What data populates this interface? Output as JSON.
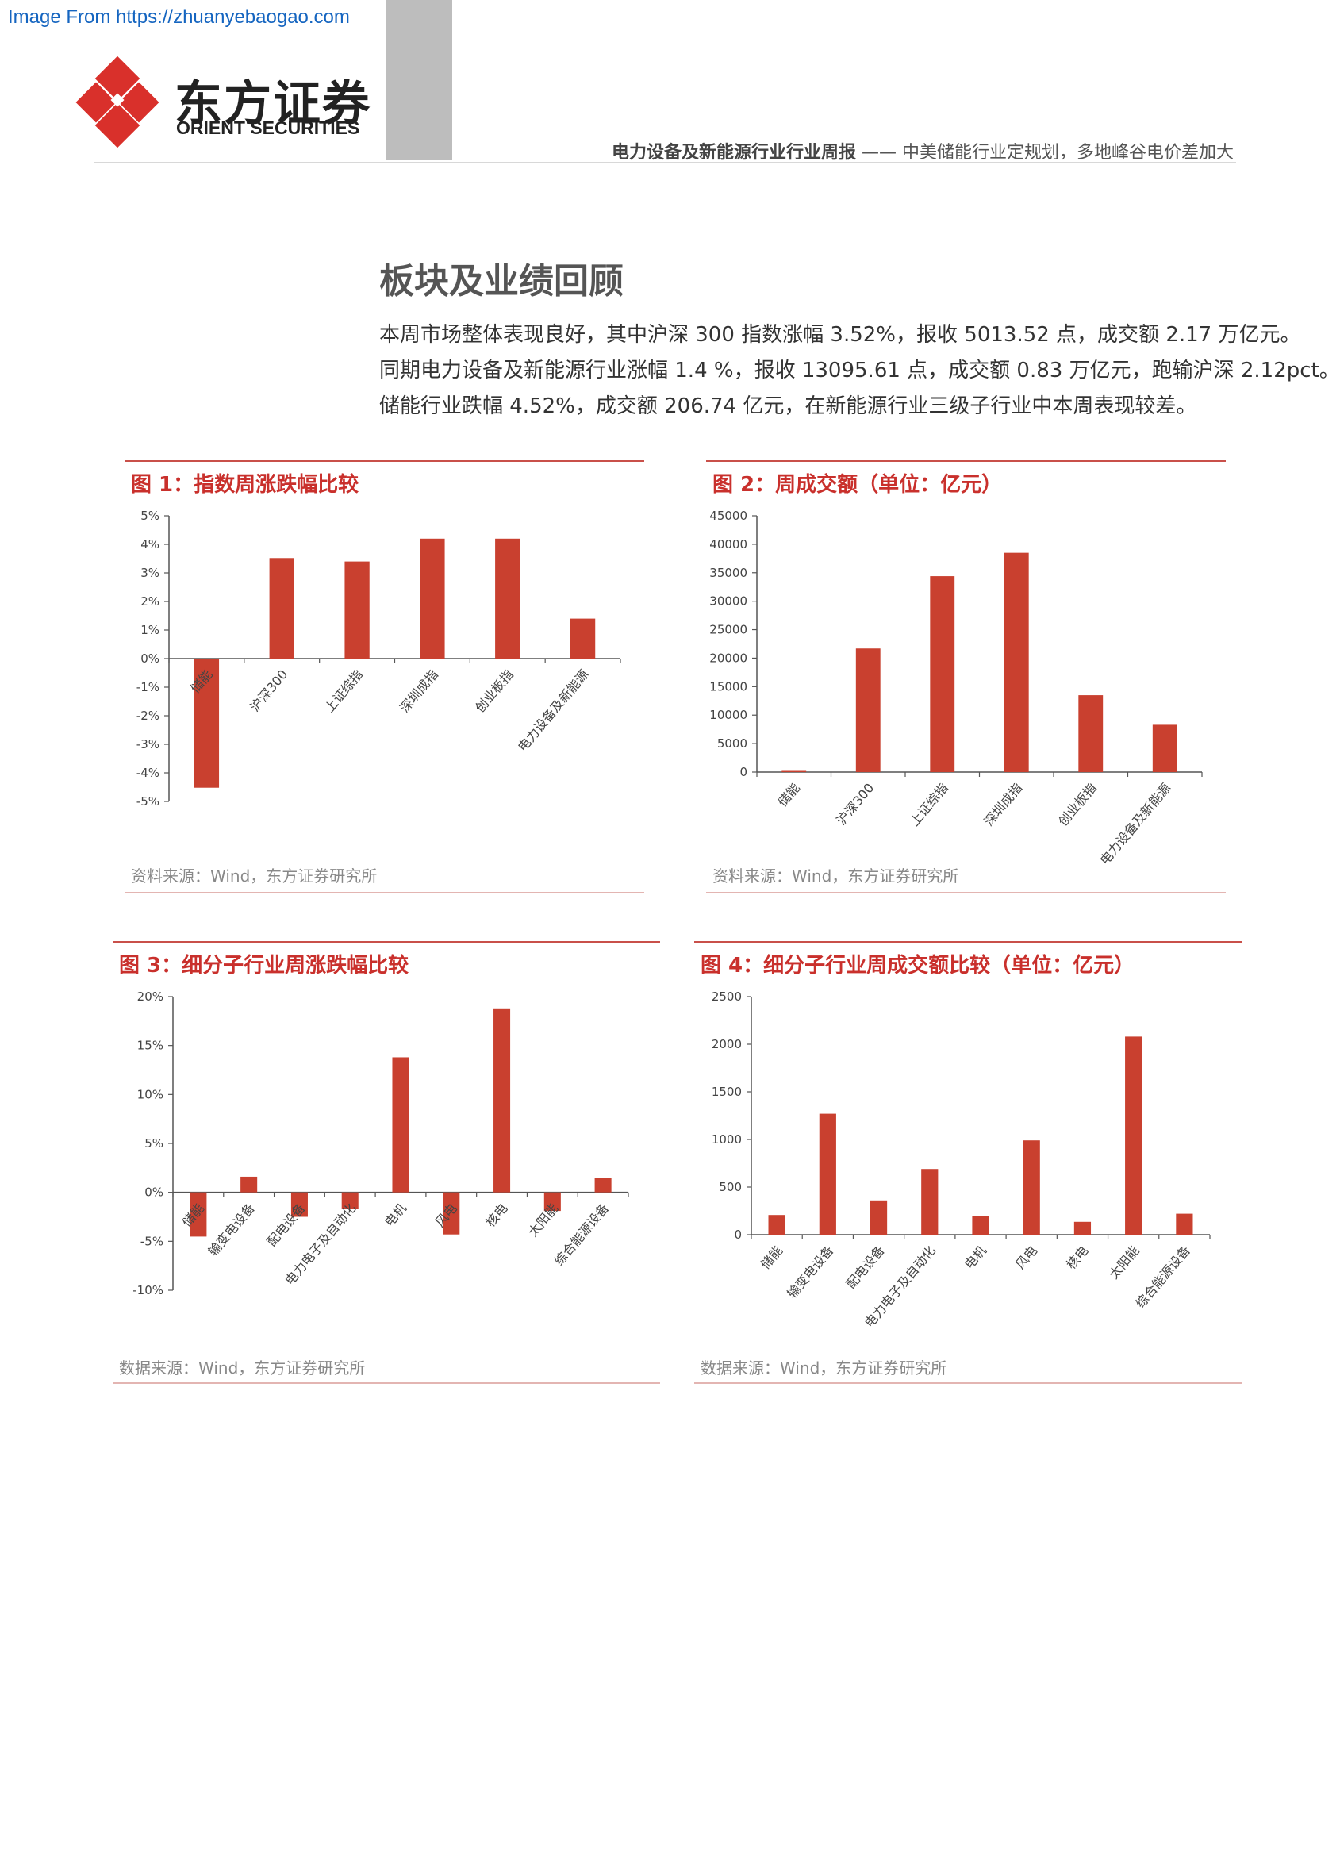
{
  "watermark": "Image From https://zhuanyebaogao.com",
  "logo": {
    "cn": "东方证券",
    "en": "ORIENT SECURITIES",
    "brand_color": "#d9302b"
  },
  "header": {
    "report_type": "电力设备及新能源行业行业周报",
    "dash": "——",
    "subtitle": "中美储能行业定规划，多地峰谷电价差加大"
  },
  "section": {
    "title": "板块及业绩回顾",
    "paragraph_lines": [
      "本周市场整体表现良好，其中沪深 300 指数涨幅 3.52%，报收 5013.52 点，成交额 2.17 万亿元。",
      "同期电力设备及新能源行业涨幅 1.4 %，报收 13095.61 点，成交额 0.83 万亿元，跑输沪深 2.12pct。",
      "储能行业跌幅 4.52%，成交额 206.74 亿元，在新能源行业三级子行业中本周表现较差。"
    ]
  },
  "figures": [
    {
      "title": "图 1：指数周涨跌幅比较",
      "source": "资料来源：Wind，东方证券研究所"
    },
    {
      "title": "图 2：周成交额（单位：亿元）",
      "source": "资料来源：Wind，东方证券研究所"
    },
    {
      "title": "图 3：细分子行业周涨跌幅比较",
      "source": "数据来源：Wind，东方证券研究所"
    },
    {
      "title": "图 4：细分子行业周成交额比较（单位：亿元）",
      "source": "数据来源：Wind，东方证券研究所"
    }
  ],
  "colors": {
    "bar": "#c9402f",
    "rule": "#c9504a"
  },
  "chart_data": [
    {
      "type": "bar",
      "title": "图 1：指数周涨跌幅比较",
      "categories": [
        "储能",
        "沪深300",
        "上证综指",
        "深圳成指",
        "创业板指",
        "电力设备及新能源"
      ],
      "values": [
        -4.52,
        3.52,
        3.4,
        4.2,
        4.2,
        1.4
      ],
      "ylim": [
        -5,
        5
      ],
      "yticks": [
        5,
        4,
        3,
        2,
        1,
        0,
        -1,
        -2,
        -3,
        -4,
        -5
      ],
      "ytick_labels": [
        "5%",
        "4%",
        "3%",
        "2%",
        "1%",
        "0%",
        "-1%",
        "-2%",
        "-3%",
        "-4%",
        "-5%"
      ],
      "grid": false
    },
    {
      "type": "bar",
      "title": "图 2：周成交额（单位：亿元）",
      "categories": [
        "储能",
        "沪深300",
        "上证综指",
        "深圳成指",
        "创业板指",
        "电力设备及新能源"
      ],
      "values": [
        206.74,
        21700,
        34400,
        38500,
        13500,
        8300
      ],
      "ylim": [
        0,
        45000
      ],
      "yticks": [
        45000,
        40000,
        35000,
        30000,
        25000,
        20000,
        15000,
        10000,
        5000,
        0
      ],
      "ytick_labels": [
        "45000",
        "40000",
        "35000",
        "30000",
        "25000",
        "20000",
        "15000",
        "10000",
        "5000",
        "0"
      ],
      "grid": false
    },
    {
      "type": "bar",
      "title": "图 3：细分子行业周涨跌幅比较",
      "categories": [
        "储能",
        "输变电设备",
        "配电设备",
        "电力电子及自动化",
        "电机",
        "风电",
        "核电",
        "太阳能",
        "综合能源设备"
      ],
      "values": [
        -4.52,
        1.6,
        -2.5,
        -1.7,
        13.8,
        -4.3,
        18.8,
        -1.9,
        1.5
      ],
      "ylim": [
        -10,
        20
      ],
      "yticks": [
        20,
        15,
        10,
        5,
        0,
        -5,
        -10
      ],
      "ytick_labels": [
        "20%",
        "15%",
        "10%",
        "5%",
        "0%",
        "-5%",
        "-10%"
      ],
      "grid": false
    },
    {
      "type": "bar",
      "title": "图 4：细分子行业周成交额比较（单位：亿元）",
      "categories": [
        "储能",
        "输变电设备",
        "配电设备",
        "电力电子及自动化",
        "电机",
        "风电",
        "核电",
        "太阳能",
        "综合能源设备"
      ],
      "values": [
        206.74,
        1270,
        360,
        690,
        200,
        990,
        135,
        2080,
        220
      ],
      "ylim": [
        0,
        2500
      ],
      "yticks": [
        2500,
        2000,
        1500,
        1000,
        500,
        0
      ],
      "ytick_labels": [
        "2500",
        "2000",
        "1500",
        "1000",
        "500",
        "0"
      ],
      "grid": false
    }
  ]
}
